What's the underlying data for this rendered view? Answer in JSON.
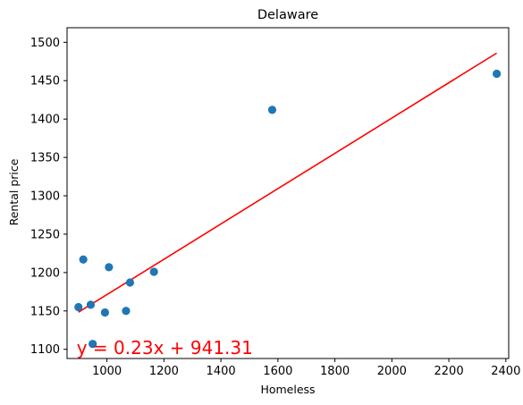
{
  "chart_data": {
    "type": "scatter",
    "title": "Delaware",
    "xlabel": "Homeless",
    "ylabel": "Rental price",
    "xlim": [
      860,
      2410
    ],
    "ylim": [
      1088,
      1519
    ],
    "xticks": [
      1000,
      1200,
      1400,
      1600,
      1800,
      2000,
      2200,
      2400
    ],
    "yticks": [
      1100,
      1150,
      1200,
      1250,
      1300,
      1350,
      1400,
      1450,
      1500
    ],
    "grid": false,
    "points": [
      {
        "x": 900,
        "y": 1155
      },
      {
        "x": 917,
        "y": 1217
      },
      {
        "x": 943,
        "y": 1158
      },
      {
        "x": 950,
        "y": 1107
      },
      {
        "x": 993,
        "y": 1148
      },
      {
        "x": 1007,
        "y": 1207
      },
      {
        "x": 1067,
        "y": 1150
      },
      {
        "x": 1081,
        "y": 1187
      },
      {
        "x": 1165,
        "y": 1201
      },
      {
        "x": 1580,
        "y": 1412
      },
      {
        "x": 2368,
        "y": 1459
      }
    ],
    "regression": {
      "slope": 0.23,
      "intercept": 941.31,
      "label": "y = 0.23x + 941.31",
      "label_position": {
        "x": 900,
        "y": 1102
      }
    },
    "colors": {
      "points": "#1f77b4",
      "regression": "#ff0000"
    }
  }
}
